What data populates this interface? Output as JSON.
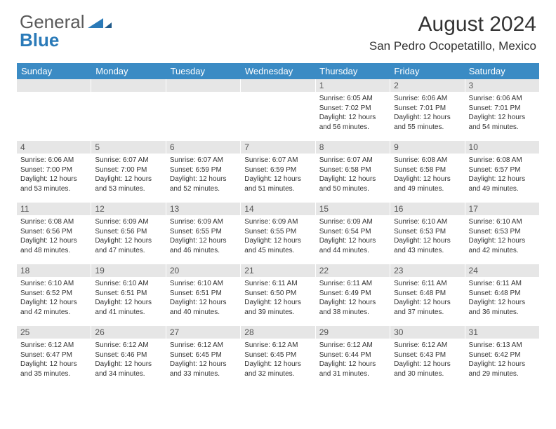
{
  "brand": {
    "part1": "General",
    "part2": "Blue"
  },
  "title": "August 2024",
  "location": "San Pedro Ocopetatillo, Mexico",
  "colors": {
    "header_bg": "#3b8bc4",
    "daynum_bg": "#e6e6e6",
    "text": "#333333",
    "brand_gray": "#5a5a5a",
    "brand_blue": "#2a7ab8"
  },
  "daysOfWeek": [
    "Sunday",
    "Monday",
    "Tuesday",
    "Wednesday",
    "Thursday",
    "Friday",
    "Saturday"
  ],
  "weeks": [
    [
      {
        "n": "",
        "sr": "",
        "ss": "",
        "dl": ""
      },
      {
        "n": "",
        "sr": "",
        "ss": "",
        "dl": ""
      },
      {
        "n": "",
        "sr": "",
        "ss": "",
        "dl": ""
      },
      {
        "n": "",
        "sr": "",
        "ss": "",
        "dl": ""
      },
      {
        "n": "1",
        "sr": "6:05 AM",
        "ss": "7:02 PM",
        "dl": "12 hours and 56 minutes."
      },
      {
        "n": "2",
        "sr": "6:06 AM",
        "ss": "7:01 PM",
        "dl": "12 hours and 55 minutes."
      },
      {
        "n": "3",
        "sr": "6:06 AM",
        "ss": "7:01 PM",
        "dl": "12 hours and 54 minutes."
      }
    ],
    [
      {
        "n": "4",
        "sr": "6:06 AM",
        "ss": "7:00 PM",
        "dl": "12 hours and 53 minutes."
      },
      {
        "n": "5",
        "sr": "6:07 AM",
        "ss": "7:00 PM",
        "dl": "12 hours and 53 minutes."
      },
      {
        "n": "6",
        "sr": "6:07 AM",
        "ss": "6:59 PM",
        "dl": "12 hours and 52 minutes."
      },
      {
        "n": "7",
        "sr": "6:07 AM",
        "ss": "6:59 PM",
        "dl": "12 hours and 51 minutes."
      },
      {
        "n": "8",
        "sr": "6:07 AM",
        "ss": "6:58 PM",
        "dl": "12 hours and 50 minutes."
      },
      {
        "n": "9",
        "sr": "6:08 AM",
        "ss": "6:58 PM",
        "dl": "12 hours and 49 minutes."
      },
      {
        "n": "10",
        "sr": "6:08 AM",
        "ss": "6:57 PM",
        "dl": "12 hours and 49 minutes."
      }
    ],
    [
      {
        "n": "11",
        "sr": "6:08 AM",
        "ss": "6:56 PM",
        "dl": "12 hours and 48 minutes."
      },
      {
        "n": "12",
        "sr": "6:09 AM",
        "ss": "6:56 PM",
        "dl": "12 hours and 47 minutes."
      },
      {
        "n": "13",
        "sr": "6:09 AM",
        "ss": "6:55 PM",
        "dl": "12 hours and 46 minutes."
      },
      {
        "n": "14",
        "sr": "6:09 AM",
        "ss": "6:55 PM",
        "dl": "12 hours and 45 minutes."
      },
      {
        "n": "15",
        "sr": "6:09 AM",
        "ss": "6:54 PM",
        "dl": "12 hours and 44 minutes."
      },
      {
        "n": "16",
        "sr": "6:10 AM",
        "ss": "6:53 PM",
        "dl": "12 hours and 43 minutes."
      },
      {
        "n": "17",
        "sr": "6:10 AM",
        "ss": "6:53 PM",
        "dl": "12 hours and 42 minutes."
      }
    ],
    [
      {
        "n": "18",
        "sr": "6:10 AM",
        "ss": "6:52 PM",
        "dl": "12 hours and 42 minutes."
      },
      {
        "n": "19",
        "sr": "6:10 AM",
        "ss": "6:51 PM",
        "dl": "12 hours and 41 minutes."
      },
      {
        "n": "20",
        "sr": "6:10 AM",
        "ss": "6:51 PM",
        "dl": "12 hours and 40 minutes."
      },
      {
        "n": "21",
        "sr": "6:11 AM",
        "ss": "6:50 PM",
        "dl": "12 hours and 39 minutes."
      },
      {
        "n": "22",
        "sr": "6:11 AM",
        "ss": "6:49 PM",
        "dl": "12 hours and 38 minutes."
      },
      {
        "n": "23",
        "sr": "6:11 AM",
        "ss": "6:48 PM",
        "dl": "12 hours and 37 minutes."
      },
      {
        "n": "24",
        "sr": "6:11 AM",
        "ss": "6:48 PM",
        "dl": "12 hours and 36 minutes."
      }
    ],
    [
      {
        "n": "25",
        "sr": "6:12 AM",
        "ss": "6:47 PM",
        "dl": "12 hours and 35 minutes."
      },
      {
        "n": "26",
        "sr": "6:12 AM",
        "ss": "6:46 PM",
        "dl": "12 hours and 34 minutes."
      },
      {
        "n": "27",
        "sr": "6:12 AM",
        "ss": "6:45 PM",
        "dl": "12 hours and 33 minutes."
      },
      {
        "n": "28",
        "sr": "6:12 AM",
        "ss": "6:45 PM",
        "dl": "12 hours and 32 minutes."
      },
      {
        "n": "29",
        "sr": "6:12 AM",
        "ss": "6:44 PM",
        "dl": "12 hours and 31 minutes."
      },
      {
        "n": "30",
        "sr": "6:12 AM",
        "ss": "6:43 PM",
        "dl": "12 hours and 30 minutes."
      },
      {
        "n": "31",
        "sr": "6:13 AM",
        "ss": "6:42 PM",
        "dl": "12 hours and 29 minutes."
      }
    ]
  ],
  "labels": {
    "sunrise": "Sunrise:",
    "sunset": "Sunset:",
    "daylight": "Daylight:"
  }
}
